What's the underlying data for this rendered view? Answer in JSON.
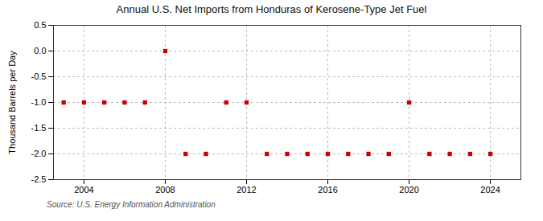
{
  "chart_data": {
    "type": "scatter",
    "title": "Annual U.S. Net Imports from Honduras of Kerosene-Type Jet Fuel",
    "ylabel": "Thousand Barrels per Day",
    "annotations": [
      "Source: U.S. Energy Information Administration"
    ],
    "x": [
      2003,
      2004,
      2005,
      2006,
      2007,
      2008,
      2009,
      2010,
      2011,
      2012,
      2013,
      2014,
      2015,
      2016,
      2017,
      2018,
      2019,
      2020,
      2021,
      2022,
      2023,
      2024
    ],
    "values": [
      -1,
      -1,
      -1,
      -1,
      -1,
      0,
      -2,
      -2,
      -1,
      -1,
      -2,
      -2,
      -2,
      -2,
      -2,
      -2,
      -2,
      -1,
      -2,
      -2,
      -2,
      -2
    ],
    "color": "#cc0000",
    "marker": "square",
    "xlim": [
      2002.5,
      2025.5
    ],
    "xticks": [
      2004,
      2008,
      2012,
      2016,
      2020,
      2024
    ],
    "ylim": [
      -2.5,
      0.5
    ],
    "yticks": [
      0.5,
      {
        "value": 0,
        "label": "0.0"
      },
      -0.5,
      {
        "value": -1,
        "label": "-1.0"
      },
      -1.5,
      {
        "value": -2,
        "label": "-2.0"
      },
      -2.5
    ],
    "grid": true
  }
}
